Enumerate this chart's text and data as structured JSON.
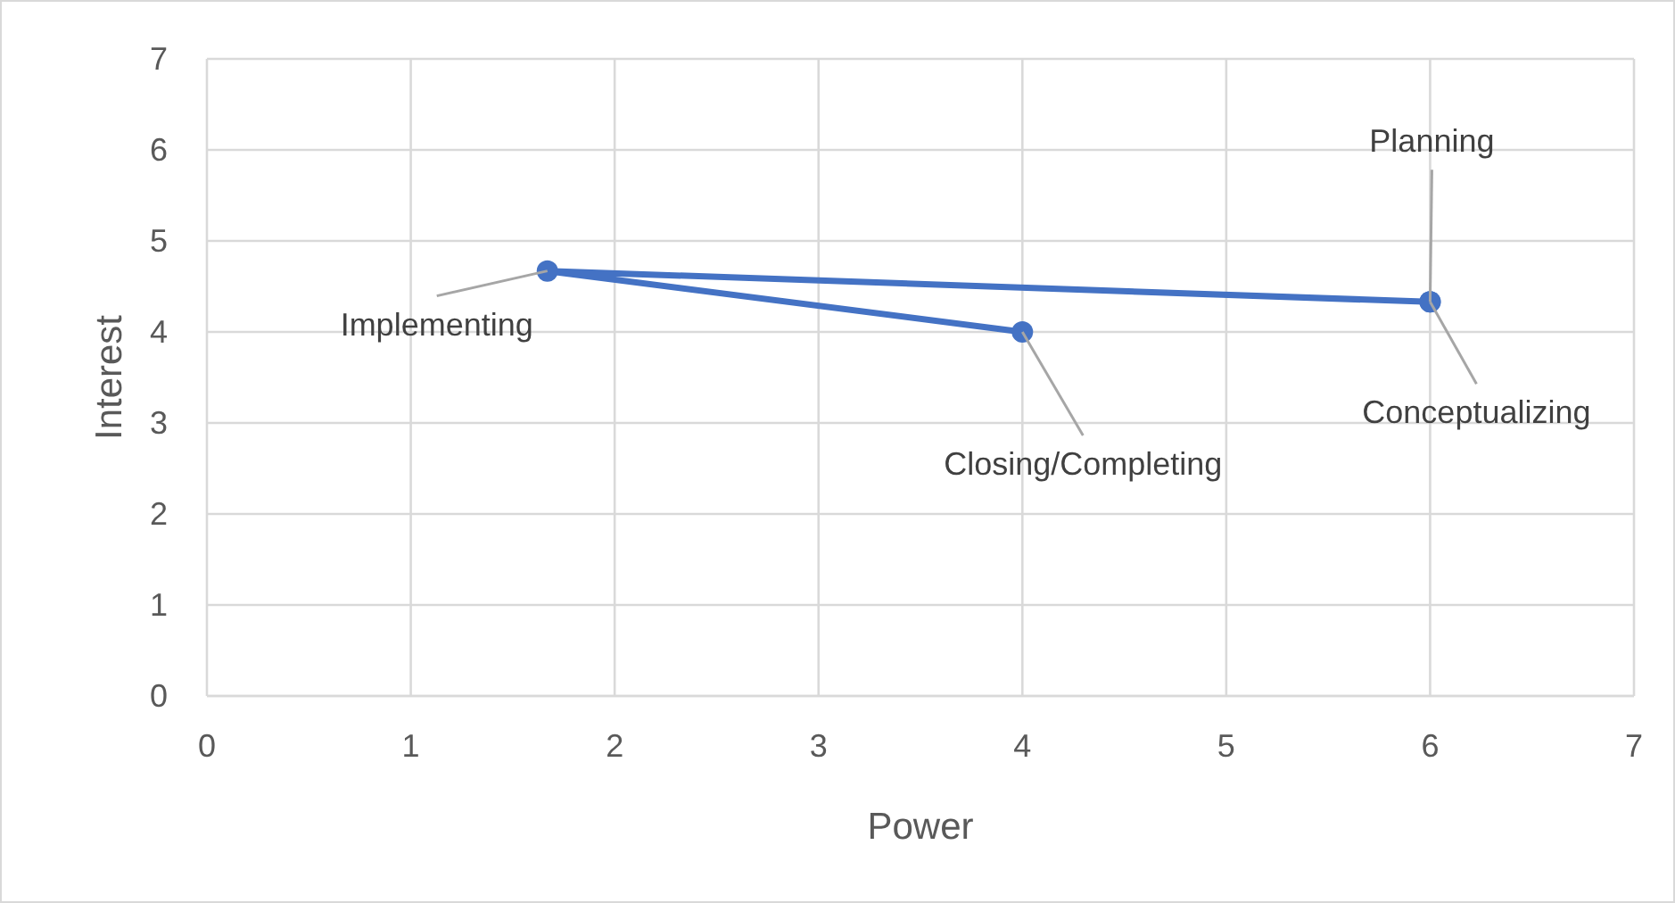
{
  "chart_data": {
    "type": "line",
    "xlabel": "Power",
    "ylabel": "Interest",
    "x": [
      6,
      6,
      1.67,
      4
    ],
    "values": [
      4.33,
      4.33,
      4.67,
      4
    ],
    "color": "#4472c4",
    "marker": "circle",
    "line_style": "solid",
    "xlim": [
      0,
      7
    ],
    "xticks": [
      0,
      1,
      2,
      3,
      4,
      5,
      6,
      7
    ],
    "ylim": [
      0,
      7
    ],
    "yticks": [
      0,
      1,
      2,
      3,
      4,
      5,
      6,
      7
    ],
    "grid": true,
    "annotations": [
      {
        "text": "Conceptualizing",
        "x": 6,
        "y": 4.33
      },
      {
        "text": "Planning",
        "x": 6,
        "y": 4.33
      },
      {
        "text": "Implementing",
        "x": 1.67,
        "y": 4.67
      },
      {
        "text": "Closing/Completing",
        "x": 4,
        "y": 4
      }
    ]
  }
}
